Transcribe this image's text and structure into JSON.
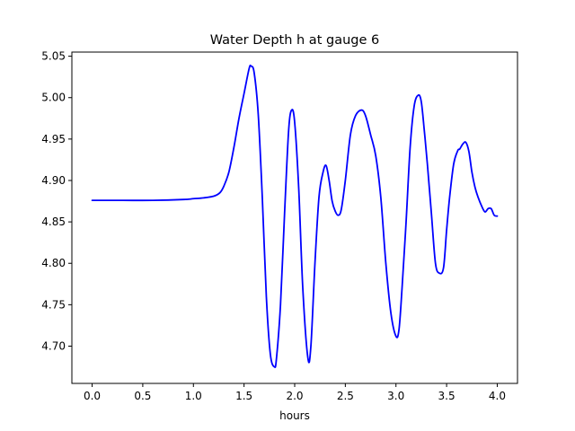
{
  "chart_data": {
    "type": "line",
    "title": "Water Depth h at gauge 6",
    "xlabel": "hours",
    "ylabel": "",
    "xlim": [
      -0.2,
      4.2
    ],
    "ylim": [
      4.655,
      5.055
    ],
    "xticks": [
      0.0,
      0.5,
      1.0,
      1.5,
      2.0,
      2.5,
      3.0,
      3.5,
      4.0
    ],
    "xtick_labels": [
      "0.0",
      "0.5",
      "1.0",
      "1.5",
      "2.0",
      "2.5",
      "3.0",
      "3.5",
      "4.0"
    ],
    "yticks": [
      4.7,
      4.75,
      4.8,
      4.85,
      4.9,
      4.95,
      5.0,
      5.05
    ],
    "ytick_labels": [
      "4.70",
      "4.75",
      "4.80",
      "4.85",
      "4.90",
      "4.95",
      "5.00",
      "5.05"
    ],
    "grid": false,
    "series": [
      {
        "color": "#0000ff",
        "x": [
          0.0,
          0.3,
          0.6,
          0.9,
          1.0,
          1.1,
          1.2,
          1.26,
          1.3,
          1.35,
          1.4,
          1.45,
          1.5,
          1.55,
          1.57,
          1.6,
          1.64,
          1.68,
          1.72,
          1.76,
          1.8,
          1.82,
          1.86,
          1.9,
          1.94,
          1.97,
          2.0,
          2.04,
          2.08,
          2.13,
          2.16,
          2.2,
          2.24,
          2.28,
          2.31,
          2.34,
          2.37,
          2.4,
          2.43,
          2.46,
          2.5,
          2.55,
          2.6,
          2.66,
          2.7,
          2.75,
          2.8,
          2.85,
          2.9,
          2.95,
          3.0,
          3.03,
          3.06,
          3.1,
          3.14,
          3.18,
          3.22,
          3.25,
          3.28,
          3.31,
          3.35,
          3.39,
          3.43,
          3.47,
          3.5,
          3.53,
          3.57,
          3.61,
          3.63,
          3.66,
          3.69,
          3.72,
          3.75,
          3.78,
          3.81,
          3.85,
          3.88,
          3.91,
          3.94,
          3.97,
          4.0
        ],
        "y": [
          4.876,
          4.876,
          4.876,
          4.877,
          4.878,
          4.879,
          4.881,
          4.885,
          4.893,
          4.91,
          4.94,
          4.975,
          5.005,
          5.035,
          5.038,
          5.03,
          4.98,
          4.88,
          4.76,
          4.69,
          4.675,
          4.685,
          4.75,
          4.86,
          4.96,
          4.985,
          4.97,
          4.89,
          4.77,
          4.686,
          4.7,
          4.8,
          4.88,
          4.91,
          4.918,
          4.9,
          4.875,
          4.863,
          4.858,
          4.865,
          4.9,
          4.955,
          4.978,
          4.985,
          4.978,
          4.955,
          4.93,
          4.88,
          4.8,
          4.74,
          4.712,
          4.72,
          4.77,
          4.85,
          4.94,
          4.99,
          5.003,
          4.995,
          4.96,
          4.92,
          4.86,
          4.8,
          4.788,
          4.795,
          4.84,
          4.88,
          4.92,
          4.936,
          4.938,
          4.944,
          4.946,
          4.935,
          4.91,
          4.892,
          4.88,
          4.868,
          4.862,
          4.866,
          4.866,
          4.858,
          4.857
        ]
      }
    ]
  }
}
